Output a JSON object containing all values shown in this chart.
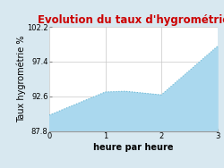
{
  "title": "Evolution du taux d'hygrométrie",
  "title_color": "#cc0000",
  "xlabel": "heure par heure",
  "ylabel": "Taux hygrométrie %",
  "x": [
    0,
    1,
    1.35,
    2,
    3
  ],
  "y": [
    90.0,
    93.2,
    93.3,
    92.8,
    99.5
  ],
  "ylim": [
    87.8,
    102.2
  ],
  "xlim": [
    0,
    3
  ],
  "yticks": [
    87.8,
    92.6,
    97.4,
    102.2
  ],
  "xticks": [
    0,
    1,
    2,
    3
  ],
  "line_color": "#6ab8d4",
  "fill_color": "#aad8ee",
  "bg_color": "#d8e8f0",
  "plot_bg_color": "#ffffff",
  "grid_color": "#c8c8c8",
  "title_fontsize": 8.5,
  "label_fontsize": 7,
  "tick_fontsize": 6
}
